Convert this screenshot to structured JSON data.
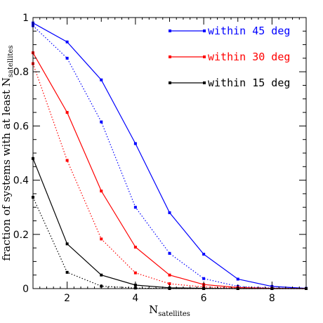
{
  "chart_data": {
    "type": "line",
    "title": "",
    "xlabel": "N",
    "xlabel_subscript": "satellites",
    "ylabel": "fraction of systems with at least N",
    "ylabel_subscript": "satellites",
    "xlim": [
      1,
      9
    ],
    "ylim": [
      0,
      1
    ],
    "x_ticks": [
      2,
      4,
      6,
      8
    ],
    "y_ticks": [
      0,
      0.2,
      0.4,
      0.6,
      0.8,
      1
    ],
    "y_tick_labels": [
      "0",
      "0.2",
      "0.4",
      "0.6",
      "0.8",
      "1"
    ],
    "x": [
      1,
      2,
      3,
      4,
      5,
      6,
      7,
      8,
      9
    ],
    "legend_position": "top-right",
    "series": [
      {
        "name": "within 45 deg",
        "color": "#0000ff",
        "style": "solid",
        "values": [
          0.98,
          0.91,
          0.77,
          0.535,
          0.28,
          0.127,
          0.035,
          0.008,
          0.001
        ]
      },
      {
        "name": "",
        "color": "#0000ff",
        "style": "dotted",
        "values": [
          0.97,
          0.85,
          0.615,
          0.3,
          0.13,
          0.037,
          0.008,
          0.002,
          0.0
        ]
      },
      {
        "name": "within 30 deg",
        "color": "#ff0000",
        "style": "solid",
        "values": [
          0.87,
          0.65,
          0.36,
          0.153,
          0.05,
          0.015,
          0.004,
          0.001,
          0.0
        ]
      },
      {
        "name": "",
        "color": "#ff0000",
        "style": "dotted",
        "values": [
          0.83,
          0.473,
          0.183,
          0.058,
          0.018,
          0.006,
          0.002,
          0.0,
          0.0
        ]
      },
      {
        "name": "within 15 deg",
        "color": "#000000",
        "style": "solid",
        "values": [
          0.48,
          0.165,
          0.05,
          0.013,
          0.003,
          0.001,
          0.0,
          0.0,
          0.0
        ]
      },
      {
        "name": "",
        "color": "#000000",
        "style": "dotted",
        "values": [
          0.337,
          0.06,
          0.009,
          0.002,
          0.0,
          0.0,
          0.0,
          0.0,
          0.0
        ]
      }
    ]
  }
}
